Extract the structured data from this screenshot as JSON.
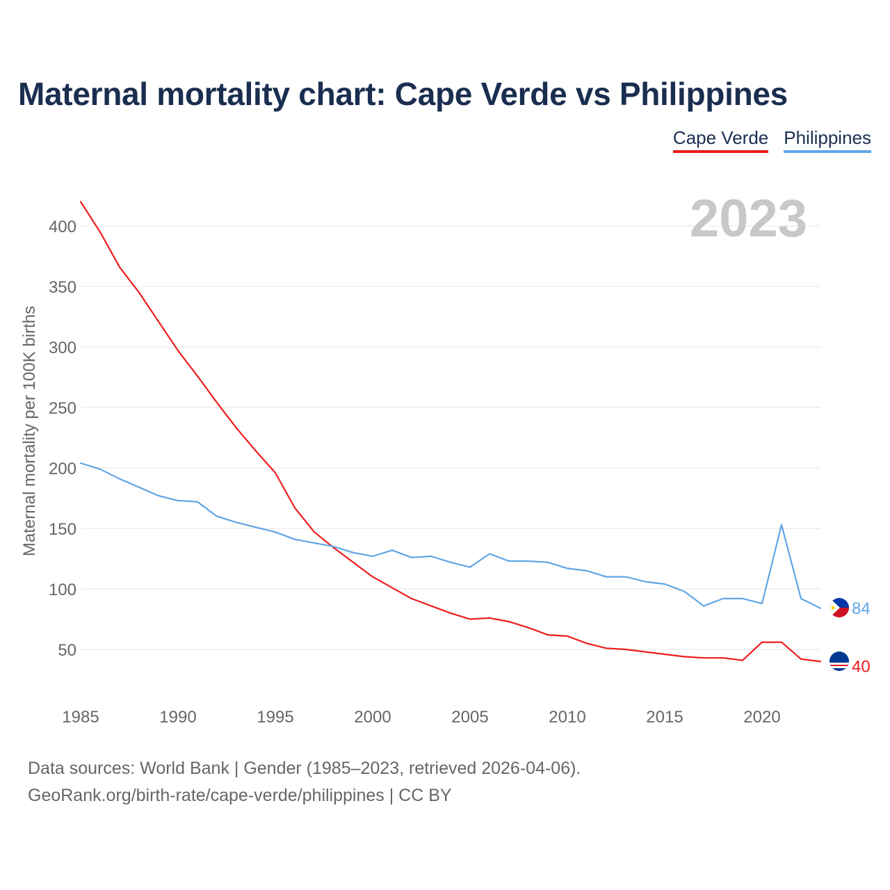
{
  "title": "Maternal mortality chart: Cape Verde vs Philippines",
  "legend": [
    {
      "label": "Cape Verde",
      "color": "#ee1c1c"
    },
    {
      "label": "Philippines",
      "color": "#5fa6e6"
    }
  ],
  "footer": {
    "source": "Data sources: World Bank | Gender (1985–2023, retrieved 2026-04-06).",
    "link": "GeoRank.org/birth-rate/cape-verde/philippines | CC BY"
  },
  "chart_data": {
    "type": "line",
    "title": "Maternal mortality chart: Cape Verde vs Philippines",
    "xlabel": "",
    "ylabel": "Maternal mortality per 100K births",
    "year_label": "2023",
    "xlim": [
      1985,
      2023
    ],
    "ylim": [
      10,
      430
    ],
    "x_ticks": [
      1985,
      1990,
      1995,
      2000,
      2005,
      2010,
      2015,
      2020
    ],
    "y_ticks": [
      50,
      100,
      150,
      200,
      250,
      300,
      350,
      400
    ],
    "grid": true,
    "legend_position": "top-right",
    "x": [
      1985,
      1986,
      1987,
      1988,
      1989,
      1990,
      1991,
      1992,
      1993,
      1994,
      1995,
      1996,
      1997,
      1998,
      1999,
      2000,
      2001,
      2002,
      2003,
      2004,
      2005,
      2006,
      2007,
      2008,
      2009,
      2010,
      2011,
      2012,
      2013,
      2014,
      2015,
      2016,
      2017,
      2018,
      2019,
      2020,
      2021,
      2022,
      2023
    ],
    "series": [
      {
        "name": "Cape Verde",
        "color": "#ee1c1c",
        "end_label": "40",
        "values": [
          420,
          395,
          366,
          345,
          321,
          297,
          276,
          254,
          233,
          214,
          196,
          167,
          147,
          134,
          122,
          110,
          101,
          92,
          86,
          80,
          75,
          76,
          73,
          68,
          62,
          61,
          55,
          51,
          50,
          48,
          46,
          44,
          43,
          43,
          41,
          56,
          56,
          42,
          40
        ]
      },
      {
        "name": "Philippines",
        "color": "#5fa6e6",
        "end_label": "84",
        "values": [
          204,
          199,
          191,
          184,
          177,
          173,
          172,
          160,
          155,
          151,
          147,
          141,
          138,
          135,
          130,
          127,
          132,
          126,
          127,
          122,
          118,
          129,
          123,
          123,
          122,
          117,
          115,
          110,
          110,
          106,
          104,
          98,
          86,
          92,
          92,
          88,
          153,
          92,
          84
        ]
      }
    ]
  }
}
